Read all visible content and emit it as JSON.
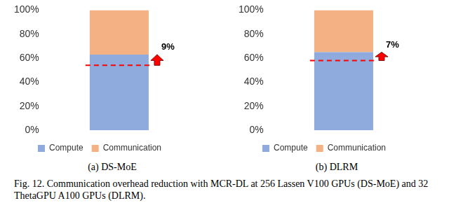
{
  "chart_data": [
    {
      "type": "bar",
      "subtitle": "(a) DS-MoE",
      "categories": [
        null
      ],
      "series": [
        {
          "name": "Compute",
          "color": "#8faadc",
          "values": [
            63
          ]
        },
        {
          "name": "Communication",
          "color": "#f4b183",
          "values": [
            37
          ]
        }
      ],
      "stacked": true,
      "ylim": [
        0,
        100
      ],
      "yticks": [
        {
          "value": 0,
          "label": "0%"
        },
        {
          "value": 20,
          "label": "20%"
        },
        {
          "value": 40,
          "label": "40%"
        },
        {
          "value": 60,
          "label": "60%"
        },
        {
          "value": 80,
          "label": "80%"
        },
        {
          "value": 100,
          "label": "100%"
        }
      ],
      "grid": false,
      "legend": "bottom",
      "baseline": [
        54
      ],
      "annotation": {
        "text": "9%",
        "value": 9
      }
    },
    {
      "type": "bar",
      "subtitle": "(b) DLRM",
      "categories": [
        null
      ],
      "series": [
        {
          "name": "Compute",
          "color": "#8faadc",
          "values": [
            65
          ]
        },
        {
          "name": "Communication",
          "color": "#f4b183",
          "values": [
            35
          ]
        }
      ],
      "stacked": true,
      "ylim": [
        0,
        100
      ],
      "yticks": [
        {
          "value": 0,
          "label": "0%"
        },
        {
          "value": 20,
          "label": "20%"
        },
        {
          "value": 40,
          "label": "40%"
        },
        {
          "value": 60,
          "label": "60%"
        },
        {
          "value": 80,
          "label": "80%"
        },
        {
          "value": 100,
          "label": "100%"
        }
      ],
      "grid": false,
      "legend": "bottom",
      "baseline": [
        58
      ],
      "annotation": {
        "text": "7%",
        "value": 7
      }
    }
  ],
  "caption": "Fig. 12.  Communication overhead reduction with MCR-DL at 256 Lassen V100 GPUs (DS-MoE) and 32 ThetaGPU A100 GPUs (DLRM)."
}
